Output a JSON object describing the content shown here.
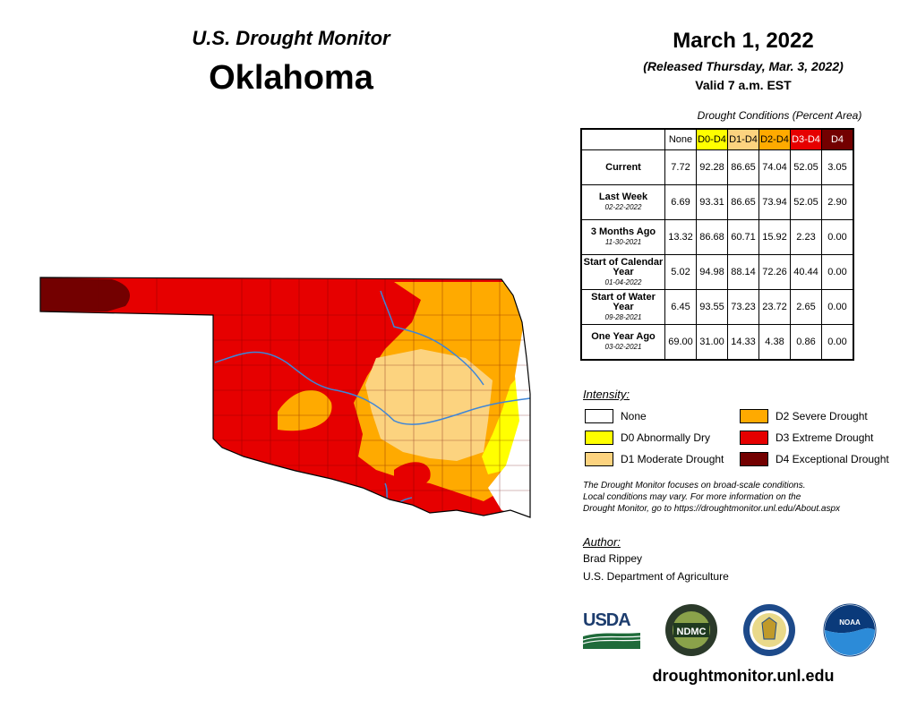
{
  "header": {
    "brand": "U.S. Drought Monitor",
    "state": "Oklahoma",
    "date": "March 1, 2022",
    "released": "(Released Thursday, Mar. 3, 2022)",
    "valid": "Valid 7 a.m. EST"
  },
  "table": {
    "caption": "Drought Conditions (Percent Area)",
    "columns": [
      "None",
      "D0-D4",
      "D1-D4",
      "D2-D4",
      "D3-D4",
      "D4"
    ],
    "column_colors": [
      "#ffffff",
      "#ffff00",
      "#fcd37f",
      "#ffaa00",
      "#e60000",
      "#730000"
    ],
    "rows": [
      {
        "label": "Current",
        "sub": "",
        "values": [
          "7.72",
          "92.28",
          "86.65",
          "74.04",
          "52.05",
          "3.05"
        ]
      },
      {
        "label": "Last Week",
        "sub": "02-22-2022",
        "values": [
          "6.69",
          "93.31",
          "86.65",
          "73.94",
          "52.05",
          "2.90"
        ]
      },
      {
        "label": "3 Months Ago",
        "sub": "11-30-2021",
        "values": [
          "13.32",
          "86.68",
          "60.71",
          "15.92",
          "2.23",
          "0.00"
        ]
      },
      {
        "label": "Start of Calendar Year",
        "sub": "01-04-2022",
        "values": [
          "5.02",
          "94.98",
          "88.14",
          "72.26",
          "40.44",
          "0.00"
        ]
      },
      {
        "label": "Start of Water Year",
        "sub": "09-28-2021",
        "values": [
          "6.45",
          "93.55",
          "73.23",
          "23.72",
          "2.65",
          "0.00"
        ]
      },
      {
        "label": "One Year Ago",
        "sub": "03-02-2021",
        "values": [
          "69.00",
          "31.00",
          "14.33",
          "4.38",
          "0.86",
          "0.00"
        ]
      }
    ]
  },
  "legend": {
    "title": "Intensity:",
    "items": [
      {
        "label": "None",
        "color": "#ffffff"
      },
      {
        "label": "D0 Abnormally Dry",
        "color": "#ffff00"
      },
      {
        "label": "D1 Moderate Drought",
        "color": "#fcd37f"
      },
      {
        "label": "D2 Severe Drought",
        "color": "#ffaa00"
      },
      {
        "label": "D3 Extreme Drought",
        "color": "#e60000"
      },
      {
        "label": "D4 Exceptional Drought",
        "color": "#730000"
      }
    ]
  },
  "disclaimer": {
    "line1": "The Drought Monitor focuses on broad-scale conditions.",
    "line2": "Local conditions may vary. For more information on the",
    "line3": "Drought Monitor, go to https://droughtmonitor.unl.edu/About.aspx"
  },
  "author": {
    "title": "Author:",
    "name": "Brad Rippey",
    "org": "U.S. Department of Agriculture"
  },
  "logos": {
    "usda": "USDA",
    "ndmc": "NDMC",
    "noaa": "NOAA"
  },
  "footer": {
    "url": "droughtmonitor.unl.edu"
  },
  "colors": {
    "d0": "#ffff00",
    "d1": "#fcd37f",
    "d2": "#ffaa00",
    "d3": "#e60000",
    "d4": "#730000",
    "water": "#3d85d8"
  }
}
